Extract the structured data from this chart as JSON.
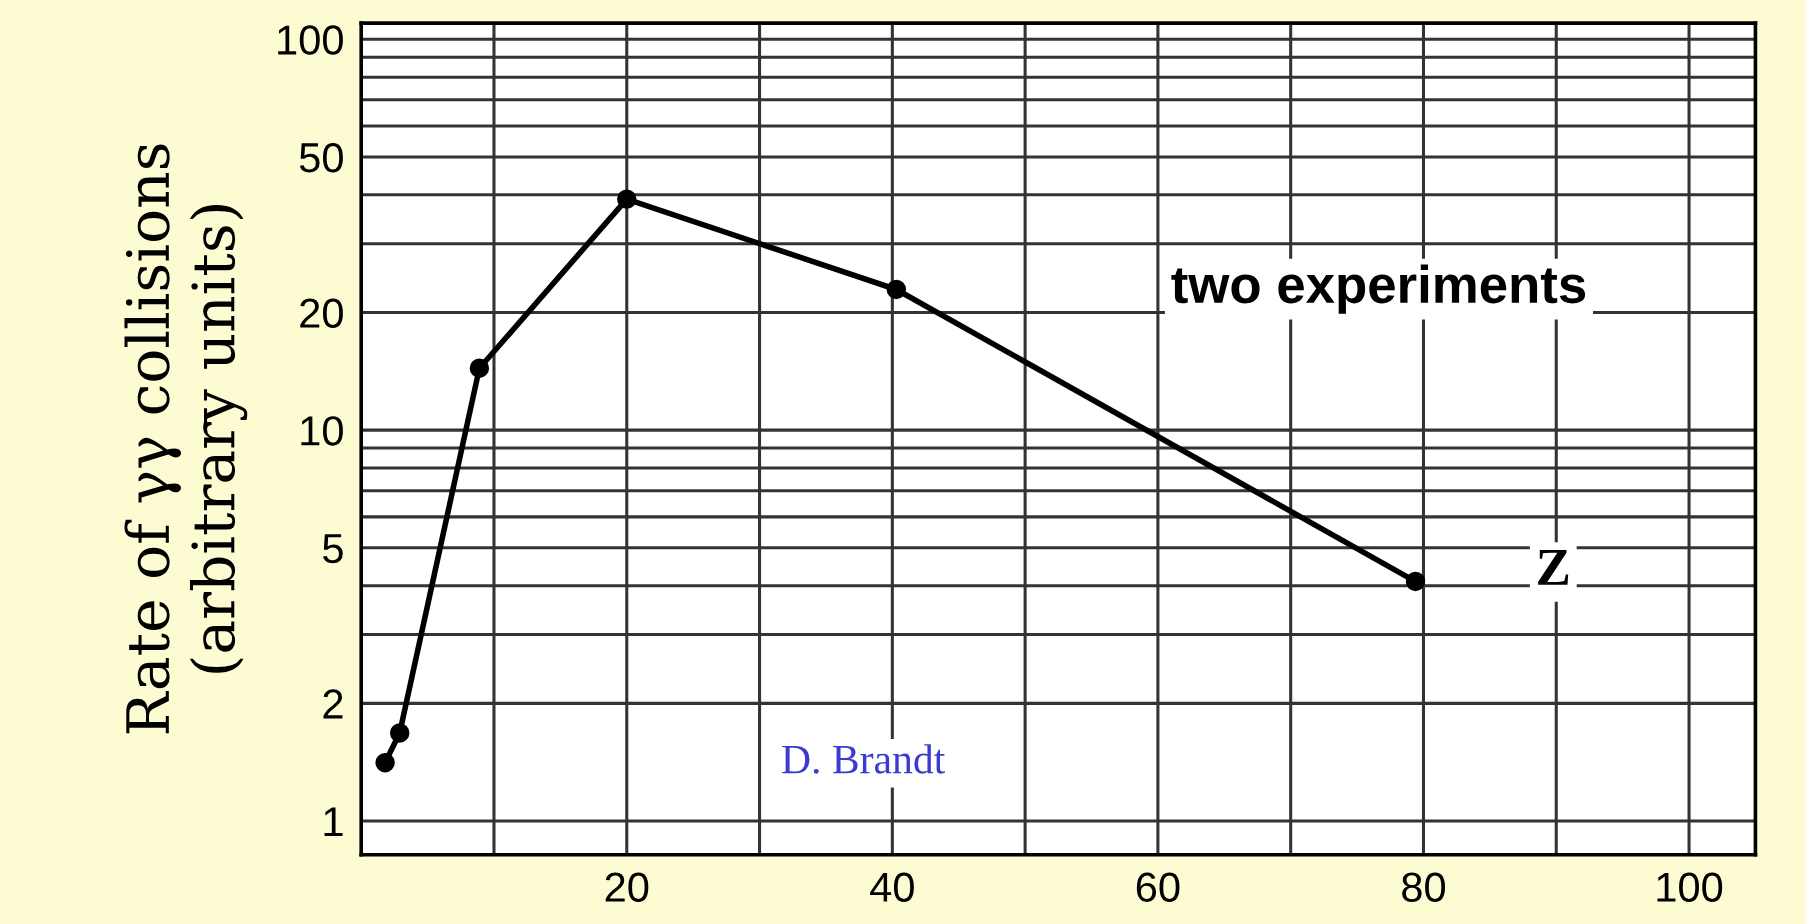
{
  "chart_data": {
    "type": "line",
    "ylabel": "Rate of γγ collisions\n(arbitrary units)",
    "x": [
      1.8,
      2.9,
      8.9,
      20,
      40.3,
      79.4
    ],
    "series": [
      {
        "color": "#000000",
        "values": [
          1.41,
          1.68,
          14.4,
          39,
          22.9,
          4.1
        ]
      }
    ],
    "marker": "circle",
    "line_style": "solid",
    "log": "y",
    "grid": true,
    "xlim": [
      0,
      105
    ],
    "ylim": [
      0.82,
      110
    ],
    "xticks": [
      {
        "value": 10,
        "label": null
      },
      20,
      {
        "value": 30,
        "label": null
      },
      40,
      {
        "value": 50,
        "label": null
      },
      60,
      {
        "value": 70,
        "label": null
      },
      80,
      {
        "value": 90,
        "label": null
      },
      100
    ],
    "yticks": [
      1,
      2,
      {
        "value": 3,
        "label": null
      },
      {
        "value": 4,
        "label": null
      },
      5,
      {
        "value": 6,
        "label": null
      },
      {
        "value": 7,
        "label": null
      },
      {
        "value": 8,
        "label": null
      },
      {
        "value": 9,
        "label": null
      },
      10,
      20,
      {
        "value": 30,
        "label": null
      },
      {
        "value": 40,
        "label": null
      },
      50,
      {
        "value": 60,
        "label": null
      },
      {
        "value": 70,
        "label": null
      },
      {
        "value": 80,
        "label": null
      },
      {
        "value": 90,
        "label": null
      },
      100
    ],
    "annotations": [
      "two experiments",
      "Z",
      "D. Brandt"
    ]
  }
}
